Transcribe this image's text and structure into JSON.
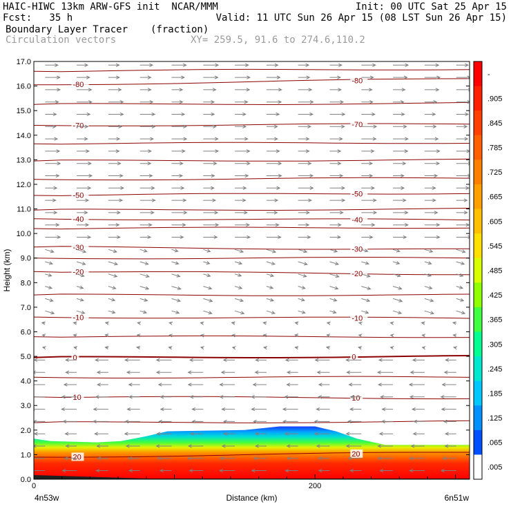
{
  "header": {
    "line1_left": "HAIC-HIWC 13km ARW-GFS init  NCAR/MMM",
    "line1_right": "Init: 00 UTC Sat 25 Apr 15",
    "line2_left": "Fcst:   35 h",
    "line2_right": "Valid: 11 UTC Sun 26 Apr 15 (08 LST Sun 26 Apr 15)",
    "field_name": "Boundary Layer Tracer",
    "field_units": "(fraction)",
    "vector_name": "Circulation vectors",
    "xy_text": "XY= 259.5, 91.6 to 274.6,110.2"
  },
  "chart_data": {
    "type": "heatmap",
    "title": "Boundary Layer Tracer",
    "ylabel": "Height (km)",
    "xlabel": "Distance (km)",
    "ylim": [
      0,
      17
    ],
    "xlim": [
      0,
      310
    ],
    "y_ticks": [
      "0.0",
      "1.0",
      "2.0",
      "3.0",
      "4.0",
      "5.0",
      "6.0",
      "7.0",
      "8.0",
      "9.0",
      "10.0",
      "11.0",
      "12.0",
      "13.0",
      "14.0",
      "15.0",
      "16.0",
      "17.0"
    ],
    "x_ticks": [
      {
        "value": 0,
        "label": "0"
      },
      {
        "value": 200,
        "label": "200"
      }
    ],
    "x_end_labels": {
      "left": "4n53w",
      "right": "6n51w"
    },
    "colorbar": {
      "labels": [
        "-",
        ".905",
        ".845",
        ".785",
        ".725",
        ".665",
        ".605",
        ".545",
        ".485",
        ".425",
        ".365",
        ".305",
        ".245",
        ".185",
        ".125",
        ".065",
        ".005"
      ],
      "colors": [
        "#ff0000",
        "#ff2000",
        "#ff4000",
        "#ff6000",
        "#ff8000",
        "#ffa000",
        "#ffc000",
        "#ffe000",
        "#d8ff00",
        "#90ff00",
        "#40ff40",
        "#00ff90",
        "#00e8d0",
        "#00c8ff",
        "#0090ff",
        "#0050ff",
        "#ffffff"
      ]
    },
    "tracer_top_km": [
      {
        "x": 0,
        "z": 1.65
      },
      {
        "x": 12,
        "z": 1.55
      },
      {
        "x": 45,
        "z": 1.5
      },
      {
        "x": 62,
        "z": 1.55
      },
      {
        "x": 80,
        "z": 1.75
      },
      {
        "x": 95,
        "z": 1.95
      },
      {
        "x": 150,
        "z": 2.0
      },
      {
        "x": 175,
        "z": 2.15
      },
      {
        "x": 200,
        "z": 2.15
      },
      {
        "x": 215,
        "z": 1.95
      },
      {
        "x": 230,
        "z": 1.65
      },
      {
        "x": 250,
        "z": 1.4
      },
      {
        "x": 310,
        "z": 1.4
      }
    ],
    "temperature_contours": [
      {
        "label": "-80",
        "z": 16.05,
        "slope": 0.25
      },
      {
        "label": "",
        "z": 16.6,
        "slope": 0.1
      },
      {
        "label": "",
        "z": 15.25,
        "slope": 0.05
      },
      {
        "label": "-70",
        "z": 14.4,
        "slope": 0.05
      },
      {
        "label": "",
        "z": 13.65,
        "slope": 0.05
      },
      {
        "label": "",
        "z": 12.95,
        "slope": 0.05
      },
      {
        "label": "",
        "z": 12.2,
        "slope": 0.05
      },
      {
        "label": "-50",
        "z": 11.55,
        "slope": 0.1
      },
      {
        "label": "",
        "z": 10.95,
        "slope": 0.05
      },
      {
        "label": "-40",
        "z": 10.6,
        "slope": -0.05
      },
      {
        "label": "",
        "z": 10.2,
        "slope": 0.05
      },
      {
        "label": "-30",
        "z": 9.45,
        "slope": -0.1
      },
      {
        "label": "",
        "z": 9.0,
        "slope": 0.0
      },
      {
        "label": "-20",
        "z": 8.45,
        "slope": -0.1
      },
      {
        "label": "",
        "z": 7.5,
        "slope": 0.0
      },
      {
        "label": "-10",
        "z": 6.6,
        "slope": -0.05
      },
      {
        "label": "",
        "z": 5.8,
        "slope": 0.0
      },
      {
        "label": "0",
        "z": 4.95,
        "slope": 0.05
      },
      {
        "label": "",
        "z": 4.15,
        "slope": 0.0
      },
      {
        "label": "10",
        "z": 3.35,
        "slope": -0.05
      },
      {
        "label": "",
        "z": 2.3,
        "slope": 0.05
      },
      {
        "label": "20",
        "z": 0.9,
        "slope": 0.2
      }
    ],
    "wind_regimes": [
      {
        "z_min": 9.6,
        "z_max": 17.0,
        "u": 1.0,
        "v": 0.0,
        "len": 1.0
      },
      {
        "z_min": 6.6,
        "z_max": 9.6,
        "u": 1.0,
        "v": -0.3,
        "len": 0.6
      },
      {
        "z_min": 5.0,
        "z_max": 6.6,
        "u": -0.6,
        "v": 0.1,
        "len": 0.35
      },
      {
        "z_min": 0.0,
        "z_max": 5.0,
        "u": -1.0,
        "v": 0.0,
        "len": 1.0
      }
    ]
  }
}
